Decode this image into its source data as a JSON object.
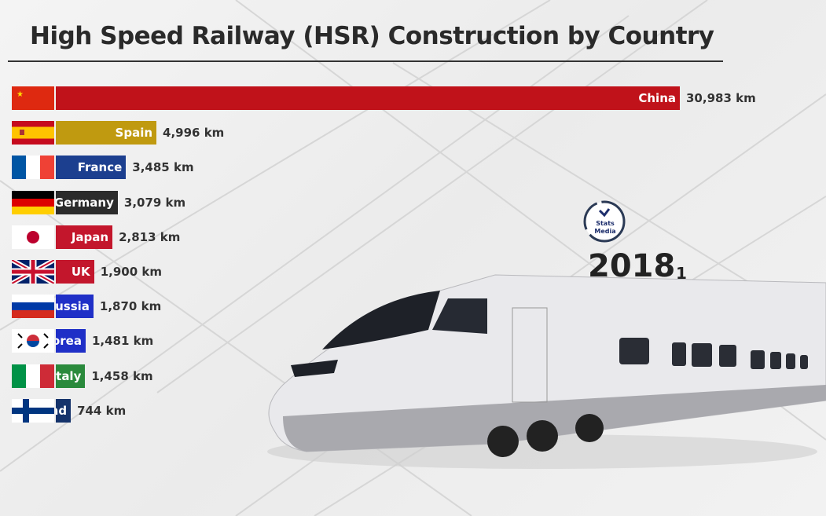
{
  "title": "High Speed Railway (HSR) Construction by Country",
  "year": "2018",
  "year_fraction_label": "1",
  "watermark": "Stats Media",
  "chart_data": {
    "type": "bar",
    "orientation": "horizontal",
    "title": "High Speed Railway (HSR) Construction by Country",
    "unit": "km",
    "categories": [
      "China",
      "Spain",
      "France",
      "Germany",
      "Japan",
      "UK",
      "Russia",
      "Korea",
      "Italy",
      "Finland"
    ],
    "values": [
      30983,
      4996,
      3485,
      3079,
      2813,
      1900,
      1870,
      1481,
      1458,
      744
    ],
    "value_labels": [
      "30,983 km",
      "4,996 km",
      "3,485 km",
      "3,079 km",
      "2,813 km",
      "1,900 km",
      "1,870 km",
      "1,481 km",
      "1,458 km",
      "744 km"
    ],
    "bar_colors": [
      "#c0121a",
      "#c09a10",
      "#1c3f8f",
      "#2b2b2b",
      "#c3162c",
      "#c3162c",
      "#1f2fc7",
      "#1f2fc7",
      "#2a8a3c",
      "#15336b"
    ],
    "flags": [
      "china",
      "spain",
      "france",
      "germany",
      "japan",
      "uk",
      "russia",
      "south-korea",
      "italy",
      "finland"
    ],
    "grid": false,
    "legend": "none"
  }
}
